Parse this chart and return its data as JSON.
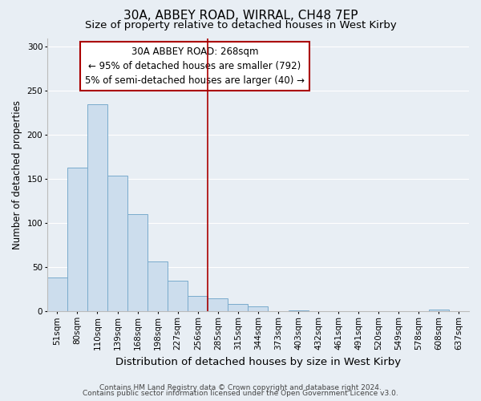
{
  "title": "30A, ABBEY ROAD, WIRRAL, CH48 7EP",
  "subtitle": "Size of property relative to detached houses in West Kirby",
  "xlabel": "Distribution of detached houses by size in West Kirby",
  "ylabel": "Number of detached properties",
  "bar_labels": [
    "51sqm",
    "80sqm",
    "110sqm",
    "139sqm",
    "168sqm",
    "198sqm",
    "227sqm",
    "256sqm",
    "285sqm",
    "315sqm",
    "344sqm",
    "373sqm",
    "403sqm",
    "432sqm",
    "461sqm",
    "491sqm",
    "520sqm",
    "549sqm",
    "578sqm",
    "608sqm",
    "637sqm"
  ],
  "bar_values": [
    39,
    163,
    235,
    154,
    110,
    57,
    35,
    18,
    15,
    9,
    6,
    0,
    1,
    0,
    0,
    0,
    0,
    0,
    0,
    2,
    0
  ],
  "bar_color": "#ccdded",
  "bar_edgecolor": "#7aabcc",
  "ylim": [
    0,
    310
  ],
  "yticks": [
    0,
    50,
    100,
    150,
    200,
    250,
    300
  ],
  "property_line_x": 7.5,
  "property_line_color": "#aa0000",
  "annotation_title": "30A ABBEY ROAD: 268sqm",
  "annotation_line1": "← 95% of detached houses are smaller (792)",
  "annotation_line2": "5% of semi-detached houses are larger (40) →",
  "footnote1": "Contains HM Land Registry data © Crown copyright and database right 2024.",
  "footnote2": "Contains public sector information licensed under the Open Government Licence v3.0.",
  "background_color": "#e8eef4",
  "grid_color": "#ffffff",
  "title_fontsize": 11,
  "subtitle_fontsize": 9.5,
  "xlabel_fontsize": 9.5,
  "ylabel_fontsize": 8.5,
  "tick_fontsize": 7.5,
  "annotation_fontsize": 8.5,
  "footnote_fontsize": 6.5
}
